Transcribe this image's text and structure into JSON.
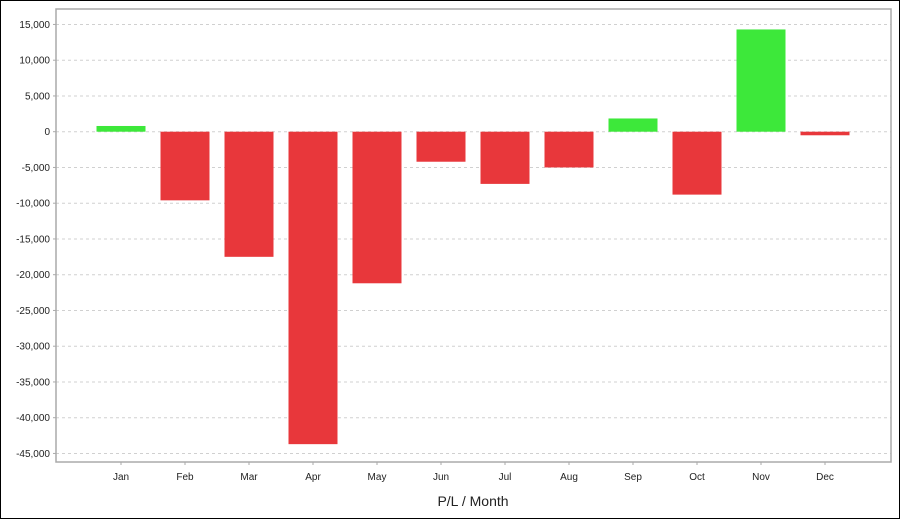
{
  "chart_data": {
    "type": "bar",
    "title": "",
    "xlabel": "P/L / Month",
    "ylabel": "",
    "categories": [
      "Jan",
      "Feb",
      "Mar",
      "Apr",
      "May",
      "Jun",
      "Jul",
      "Aug",
      "Sep",
      "Oct",
      "Nov",
      "Dec"
    ],
    "values": [
      800,
      -9600,
      -17500,
      -43700,
      -21200,
      -4200,
      -7300,
      -5000,
      1850,
      -8800,
      14300,
      -500
    ],
    "ylim": [
      -46000,
      16500
    ],
    "yticks": [
      15000,
      10000,
      5000,
      0,
      -5000,
      -10000,
      -15000,
      -20000,
      -25000,
      -30000,
      -35000,
      -40000,
      -45000
    ],
    "ytick_labels": [
      "15,000",
      "10,000",
      "5,000",
      "0",
      "-5,000",
      "-10,000",
      "-15,000",
      "-20,000",
      "-25,000",
      "-30,000",
      "-35,000",
      "-40,000",
      "-45,000"
    ],
    "grid": true,
    "colors": {
      "positive": "#3de83a",
      "negative": "#e8373b",
      "grid": "#d0d0d0",
      "axis": "#aaaaaa"
    }
  }
}
